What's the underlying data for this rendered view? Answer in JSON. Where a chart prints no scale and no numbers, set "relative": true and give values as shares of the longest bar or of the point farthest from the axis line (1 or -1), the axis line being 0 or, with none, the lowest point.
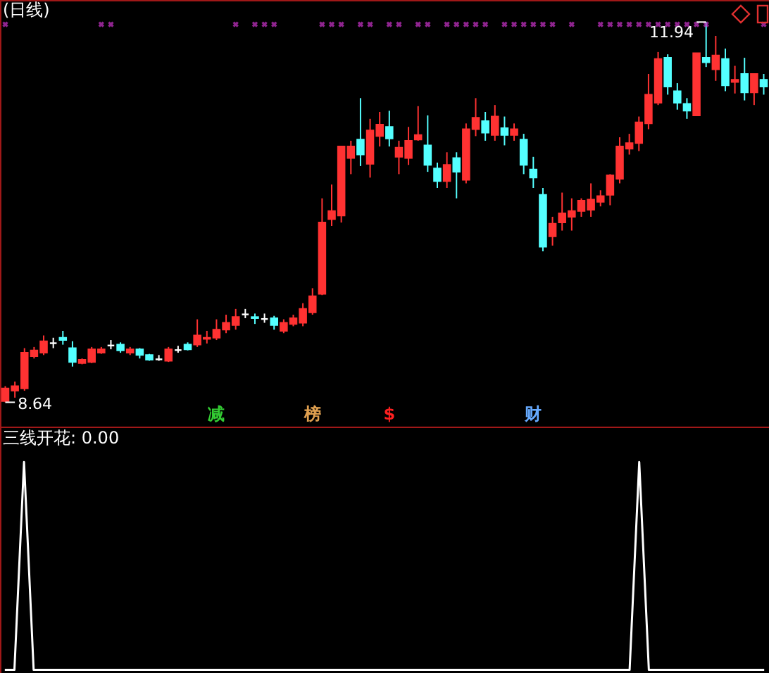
{
  "chart_data": [
    {
      "type": "candlestick",
      "title": "(日线)",
      "categories": [
        null,
        null,
        null,
        null,
        null,
        null,
        null,
        null,
        null,
        null,
        null,
        null,
        null,
        null,
        null,
        null,
        null,
        null,
        null,
        null,
        null,
        null,
        null,
        null,
        null,
        null,
        null,
        null,
        null,
        null,
        null,
        null,
        null,
        null,
        null,
        null,
        null,
        null,
        null,
        null,
        null,
        null,
        null,
        null,
        null,
        null,
        null,
        null,
        null,
        null,
        null,
        null,
        null,
        null,
        null,
        null,
        null,
        null,
        null,
        null,
        null,
        null,
        null,
        null,
        null,
        null,
        null,
        null,
        null,
        null,
        null,
        null,
        null,
        null,
        null,
        null,
        null,
        null,
        null,
        null
      ],
      "ohlc": [
        [
          8.65,
          8.78,
          8.64,
          8.76
        ],
        [
          8.74,
          8.82,
          8.68,
          8.78
        ],
        [
          8.76,
          9.11,
          8.74,
          9.07
        ],
        [
          9.04,
          9.12,
          9.02,
          9.09
        ],
        [
          9.07,
          9.22,
          9.05,
          9.17
        ],
        [
          9.16,
          9.2,
          9.11,
          9.16
        ],
        [
          9.2,
          9.26,
          9.14,
          9.18
        ],
        [
          9.11,
          9.17,
          8.95,
          8.99
        ],
        [
          8.98,
          9.02,
          8.97,
          9.01
        ],
        [
          8.99,
          9.12,
          8.98,
          9.1
        ],
        [
          9.07,
          9.12,
          9.06,
          9.1
        ],
        [
          9.14,
          9.18,
          9.1,
          9.14
        ],
        [
          9.14,
          9.16,
          9.07,
          9.09
        ],
        [
          9.07,
          9.12,
          9.05,
          9.1
        ],
        [
          9.1,
          9.11,
          9.02,
          9.05
        ],
        [
          9.05,
          9.06,
          9.0,
          9.01
        ],
        [
          9.02,
          9.05,
          9.0,
          9.02
        ],
        [
          9.0,
          9.12,
          8.99,
          9.1
        ],
        [
          9.1,
          9.13,
          9.07,
          9.1
        ],
        [
          9.14,
          9.16,
          9.09,
          9.1
        ],
        [
          9.14,
          9.36,
          9.12,
          9.22
        ],
        [
          9.19,
          9.26,
          9.15,
          9.2
        ],
        [
          9.2,
          9.36,
          9.18,
          9.27
        ],
        [
          9.27,
          9.4,
          9.24,
          9.33
        ],
        [
          9.31,
          9.45,
          9.27,
          9.38
        ],
        [
          9.41,
          9.45,
          9.37,
          9.41
        ],
        [
          9.38,
          9.41,
          9.32,
          9.37
        ],
        [
          9.37,
          9.41,
          9.33,
          9.37
        ],
        [
          9.37,
          9.39,
          9.27,
          9.31
        ],
        [
          9.26,
          9.36,
          9.24,
          9.33
        ],
        [
          9.32,
          9.4,
          9.3,
          9.37
        ],
        [
          9.33,
          9.5,
          9.3,
          9.45
        ],
        [
          9.42,
          9.63,
          9.4,
          9.56
        ],
        [
          9.58,
          10.41,
          9.57,
          10.2
        ],
        [
          10.23,
          10.53,
          10.17,
          10.3
        ],
        [
          10.26,
          10.86,
          10.2,
          10.86
        ],
        [
          10.76,
          10.91,
          10.62,
          10.86
        ],
        [
          10.92,
          11.28,
          10.69,
          10.79
        ],
        [
          10.71,
          11.1,
          10.59,
          11.0
        ],
        [
          10.95,
          11.16,
          10.86,
          11.05
        ],
        [
          11.03,
          11.17,
          10.86,
          10.93
        ],
        [
          10.77,
          10.91,
          10.62,
          10.85
        ],
        [
          10.76,
          11.03,
          10.7,
          10.91
        ],
        [
          10.92,
          11.21,
          10.91,
          10.96
        ],
        [
          10.87,
          11.13,
          10.64,
          10.7
        ],
        [
          10.67,
          10.72,
          10.5,
          10.56
        ],
        [
          10.56,
          10.81,
          10.5,
          10.7
        ],
        [
          10.76,
          10.81,
          10.41,
          10.64
        ],
        [
          10.57,
          11.06,
          10.54,
          11.01
        ],
        [
          11.01,
          11.28,
          10.95,
          11.11
        ],
        [
          11.08,
          11.16,
          10.91,
          10.98
        ],
        [
          10.96,
          11.22,
          10.91,
          11.12
        ],
        [
          11.02,
          11.12,
          10.87,
          10.96
        ],
        [
          10.96,
          11.06,
          10.91,
          11.01
        ],
        [
          10.92,
          10.97,
          10.62,
          10.7
        ],
        [
          10.66,
          10.77,
          10.5,
          10.59
        ],
        [
          10.44,
          10.5,
          9.95,
          9.99
        ],
        [
          10.08,
          10.25,
          10.0,
          10.19
        ],
        [
          10.2,
          10.46,
          10.13,
          10.28
        ],
        [
          10.25,
          10.41,
          10.13,
          10.3
        ],
        [
          10.3,
          10.41,
          10.25,
          10.39
        ],
        [
          10.31,
          10.54,
          10.25,
          10.4
        ],
        [
          10.38,
          10.48,
          10.34,
          10.43
        ],
        [
          10.44,
          10.62,
          10.35,
          10.61
        ],
        [
          10.58,
          10.94,
          10.54,
          10.86
        ],
        [
          10.84,
          10.97,
          10.79,
          10.89
        ],
        [
          10.89,
          11.12,
          10.82,
          11.07
        ],
        [
          11.06,
          11.49,
          11.01,
          11.31
        ],
        [
          11.24,
          11.68,
          11.22,
          11.62
        ],
        [
          11.63,
          11.66,
          11.31,
          11.38
        ],
        [
          11.34,
          11.41,
          11.18,
          11.24
        ],
        [
          11.23,
          11.28,
          11.1,
          11.17
        ],
        [
          11.13,
          11.67,
          11.13,
          11.67
        ],
        [
          11.63,
          11.94,
          11.55,
          11.59
        ],
        [
          11.53,
          11.82,
          11.43,
          11.65
        ],
        [
          11.62,
          11.71,
          11.34,
          11.39
        ],
        [
          11.42,
          11.56,
          11.32,
          11.44
        ],
        [
          11.49,
          11.63,
          11.26,
          11.33
        ],
        [
          11.33,
          11.49,
          11.22,
          11.49
        ],
        [
          11.44,
          11.49,
          11.31,
          11.38
        ]
      ],
      "series": [
        {
          "type": "scatter",
          "color": "#cc33cc",
          "values": [
            11.92,
            null,
            null,
            null,
            null,
            null,
            null,
            null,
            null,
            null,
            11.92,
            11.92,
            null,
            null,
            null,
            null,
            null,
            null,
            null,
            null,
            null,
            null,
            null,
            null,
            11.92,
            null,
            11.92,
            11.92,
            11.92,
            null,
            null,
            null,
            null,
            11.92,
            11.92,
            11.92,
            null,
            11.92,
            11.92,
            null,
            11.92,
            11.92,
            null,
            11.92,
            11.92,
            null,
            11.92,
            11.92,
            11.92,
            11.92,
            11.92,
            null,
            11.92,
            11.92,
            11.92,
            11.92,
            11.92,
            11.92,
            null,
            11.92,
            null,
            null,
            11.92,
            11.92,
            11.92,
            11.92,
            11.92,
            11.92,
            11.92,
            11.92,
            11.92,
            11.92,
            11.92,
            11.92,
            null,
            null,
            null,
            null,
            null,
            11.92
          ]
        }
      ],
      "marker": "cross",
      "annotations": [
        {
          "text": "11.94",
          "y": 11.94
        },
        "8.64",
        "减",
        "榜",
        "$",
        "财"
      ]
    },
    {
      "type": "line",
      "title": "三线开花: 0.00",
      "relative": true,
      "color": "#ffffff",
      "categories": [
        null,
        null,
        null,
        null,
        null,
        null,
        null,
        null,
        null,
        null,
        null,
        null,
        null,
        null,
        null,
        null,
        null,
        null,
        null,
        null,
        null,
        null,
        null,
        null,
        null,
        null,
        null,
        null,
        null,
        null,
        null,
        null,
        null,
        null,
        null,
        null,
        null,
        null,
        null,
        null,
        null,
        null,
        null,
        null,
        null,
        null,
        null,
        null,
        null,
        null,
        null,
        null,
        null,
        null,
        null,
        null,
        null,
        null,
        null,
        null,
        null,
        null,
        null,
        null,
        null,
        null,
        null,
        null,
        null,
        null,
        null,
        null,
        null,
        null,
        null,
        null,
        null,
        null,
        null,
        null
      ],
      "values": [
        0,
        0,
        1,
        0,
        0,
        0,
        0,
        0,
        0,
        0,
        0,
        0,
        0,
        0,
        0,
        0,
        0,
        0,
        0,
        0,
        0,
        0,
        0,
        0,
        0,
        0,
        0,
        0,
        0,
        0,
        0,
        0,
        0,
        0,
        0,
        0,
        0,
        0,
        0,
        0,
        0,
        0,
        0,
        0,
        0,
        0,
        0,
        0,
        0,
        0,
        0,
        0,
        0,
        0,
        0,
        0,
        0,
        0,
        0,
        0,
        0,
        0,
        0,
        0,
        0,
        0,
        1,
        0,
        0,
        0,
        0,
        0,
        0,
        0,
        0,
        0,
        0,
        0,
        0,
        0
      ]
    }
  ]
}
